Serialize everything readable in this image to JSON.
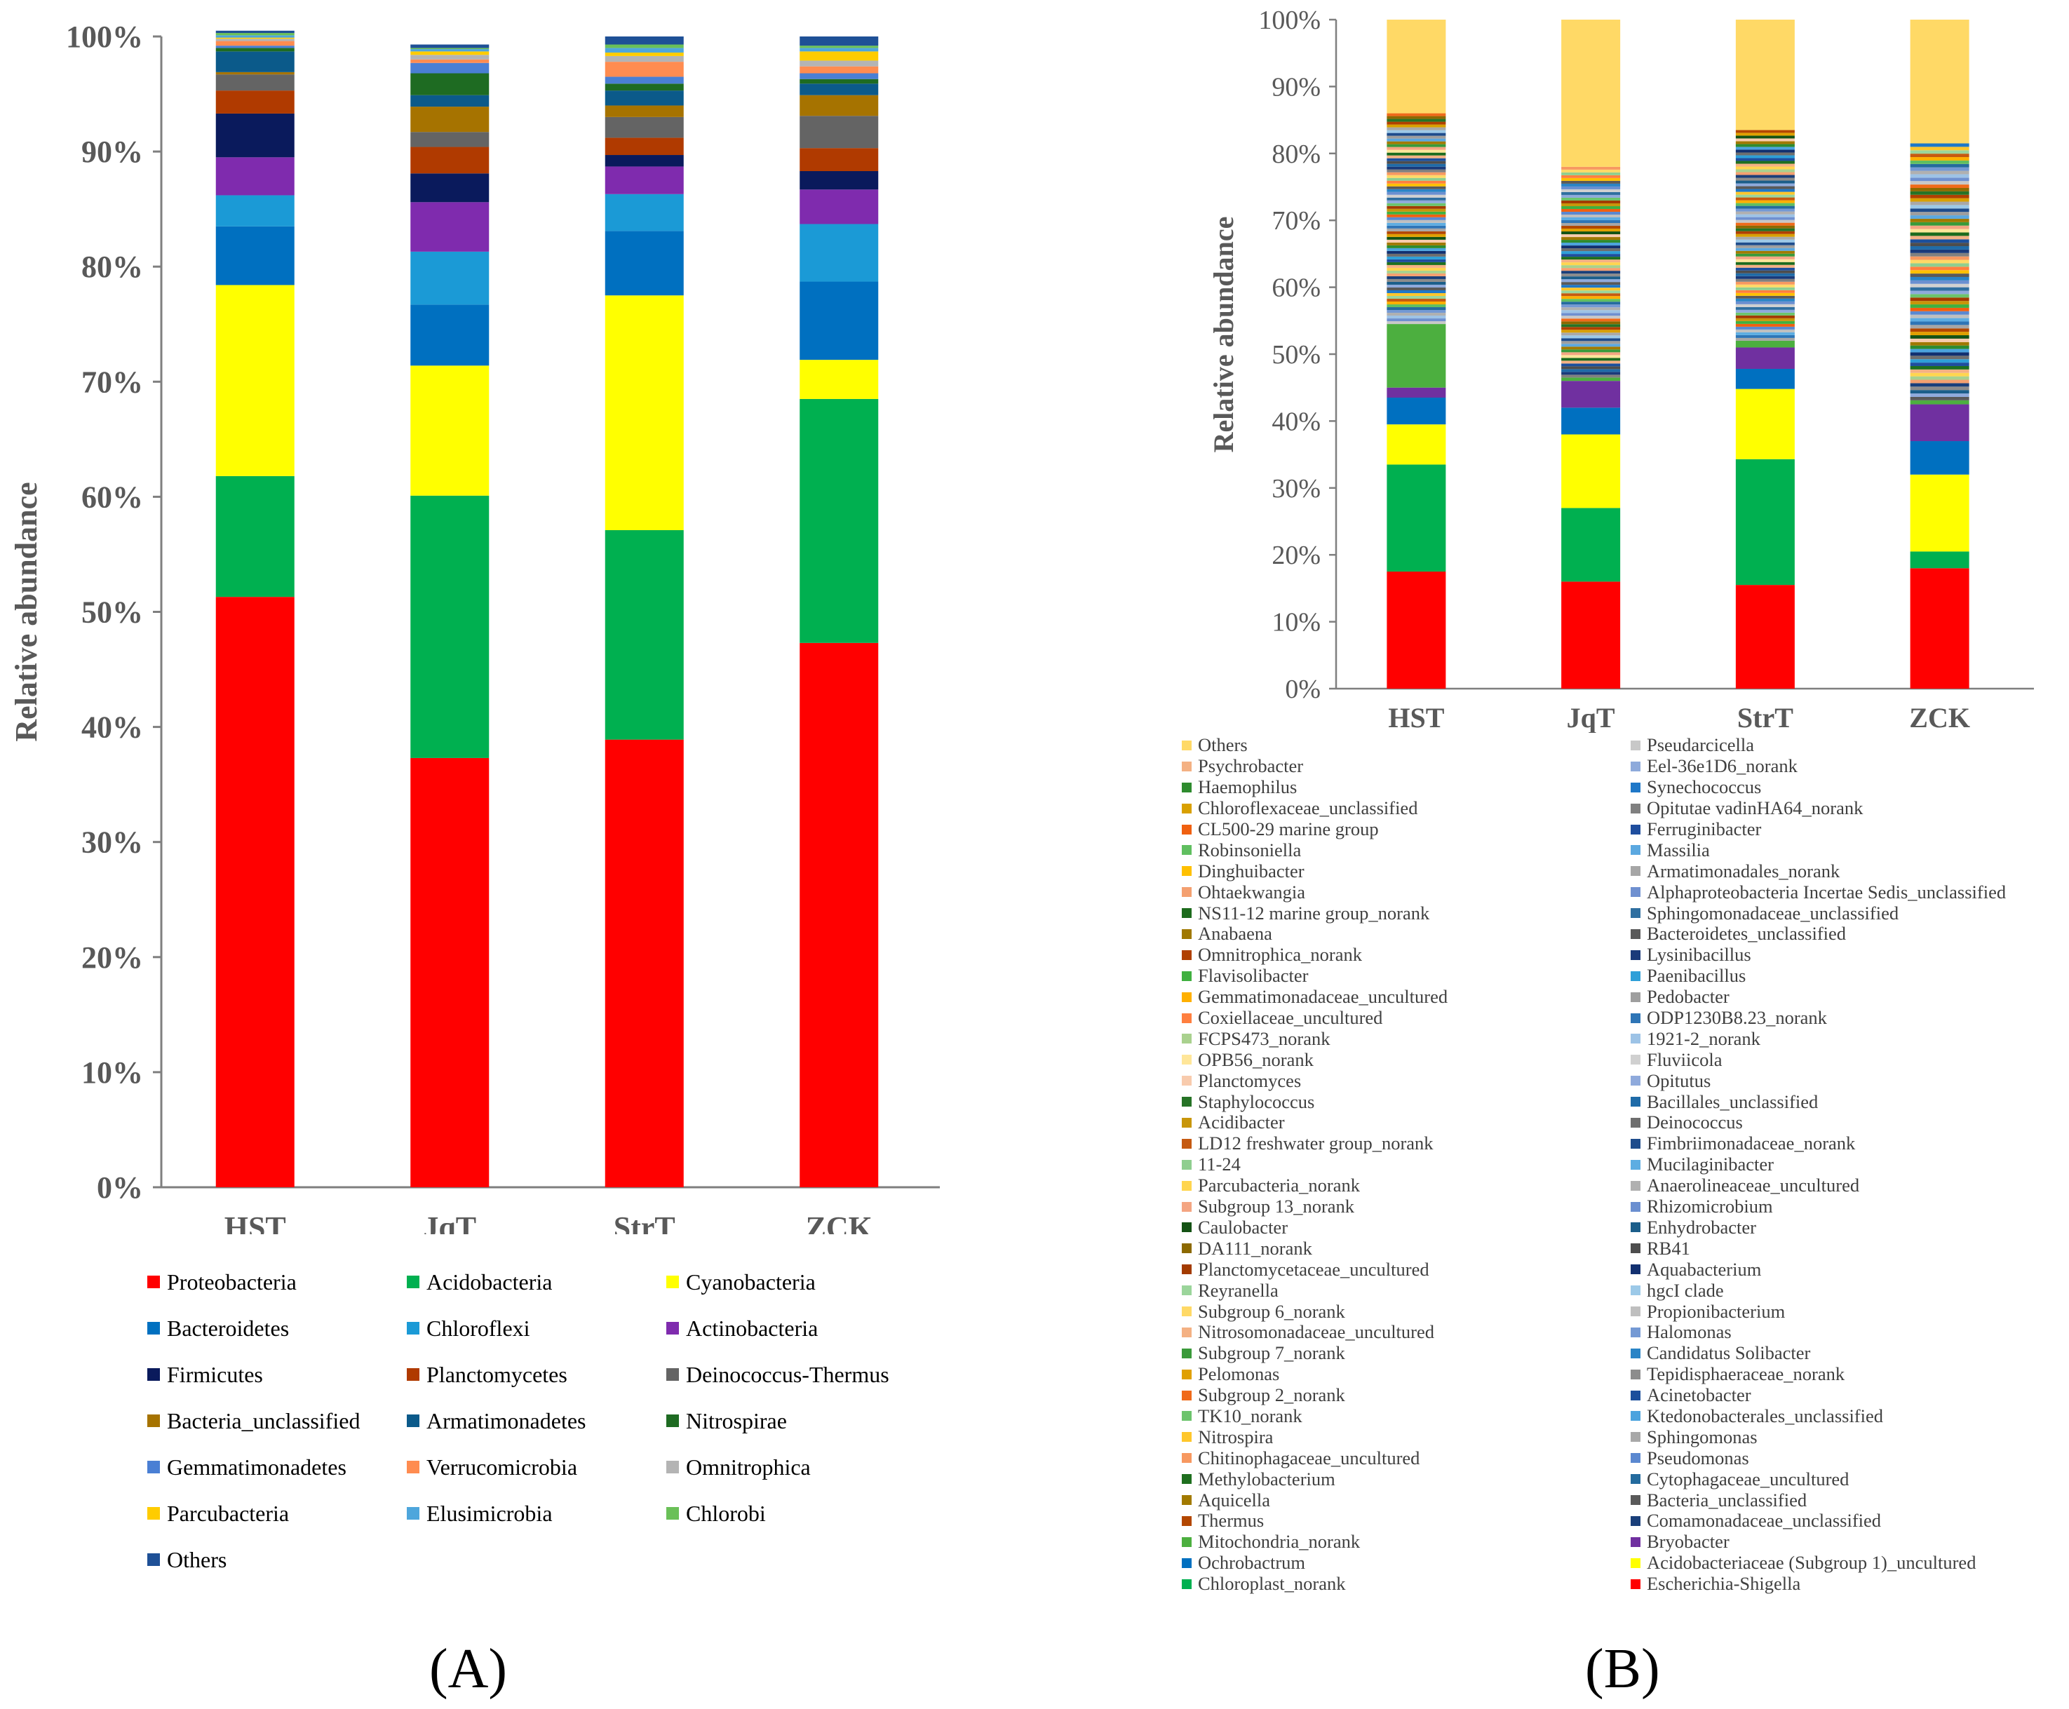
{
  "panel_labels": {
    "a": "(A)",
    "b": "(B)"
  },
  "chart_data": [
    {
      "type": "bar",
      "stacked": true,
      "panel": "A",
      "ylabel": "Relative abundance",
      "xlabel": "",
      "ylim": [
        0,
        100
      ],
      "yticks": [
        "0%",
        "10%",
        "20%",
        "30%",
        "40%",
        "50%",
        "60%",
        "70%",
        "80%",
        "90%",
        "100%"
      ],
      "categories": [
        "HST",
        "JqT",
        "StrT",
        "ZCK"
      ],
      "series": [
        {
          "name": "Proteobacteria",
          "color": "#FF0000",
          "values": [
            51.3,
            37.3,
            38.9,
            47.3
          ]
        },
        {
          "name": "Acidobacteria",
          "color": "#00B050",
          "values": [
            10.5,
            22.8,
            18.2,
            21.2
          ]
        },
        {
          "name": "Cyanobacteria",
          "color": "#FFFF00",
          "values": [
            16.6,
            11.3,
            20.4,
            3.4
          ]
        },
        {
          "name": "Bacteroidetes",
          "color": "#0070C0",
          "values": [
            5.1,
            5.3,
            5.6,
            6.8
          ]
        },
        {
          "name": "Chloroflexi",
          "color": "#1B9AD6",
          "values": [
            2.7,
            4.6,
            3.2,
            5.0
          ]
        },
        {
          "name": "Actinobacteria",
          "color": "#7F2BAE",
          "values": [
            3.3,
            4.3,
            2.4,
            3.0
          ]
        },
        {
          "name": "Firmicutes",
          "color": "#0A1A5C",
          "values": [
            3.8,
            2.5,
            1.0,
            1.6
          ]
        },
        {
          "name": "Planctomycetes",
          "color": "#B03A00",
          "values": [
            2.0,
            2.3,
            1.5,
            2.0
          ]
        },
        {
          "name": "Deinococcus-Thermus",
          "color": "#646464",
          "values": [
            1.4,
            1.3,
            1.8,
            2.8
          ]
        },
        {
          "name": "Bacteria_unclassified",
          "color": "#A67300",
          "values": [
            0.2,
            2.2,
            1.0,
            1.8
          ]
        },
        {
          "name": "Armatimonadetes",
          "color": "#0B5A8A",
          "values": [
            1.8,
            1.0,
            1.3,
            1.0
          ]
        },
        {
          "name": "Nitrospirae",
          "color": "#1E6B22",
          "values": [
            0.3,
            1.9,
            0.6,
            0.4
          ]
        },
        {
          "name": "Gemmatimonadetes",
          "color": "#4A7FD4",
          "values": [
            0.2,
            0.9,
            0.6,
            0.5
          ]
        },
        {
          "name": "Verrucomicrobia",
          "color": "#FF8C50",
          "values": [
            0.4,
            0.3,
            1.3,
            0.6
          ]
        },
        {
          "name": "Omnitrophica",
          "color": "#B4B4B4",
          "values": [
            0.2,
            0.4,
            0.5,
            0.5
          ]
        },
        {
          "name": "Parcubacteria",
          "color": "#FFCC00",
          "values": [
            0.1,
            0.3,
            0.3,
            0.8
          ]
        },
        {
          "name": "Elusimicrobia",
          "color": "#4EA6DC",
          "values": [
            0.2,
            0.2,
            0.4,
            0.3
          ]
        },
        {
          "name": "Chlorobi",
          "color": "#6AC058",
          "values": [
            0.2,
            0.1,
            0.3,
            0.2
          ]
        },
        {
          "name": "Others",
          "color": "#1E5096",
          "values": [
            0.2,
            0.3,
            0.7,
            0.8
          ]
        }
      ]
    },
    {
      "type": "bar",
      "stacked": true,
      "panel": "B",
      "ylabel": "Relative abundance",
      "xlabel": "",
      "ylim": [
        0,
        100
      ],
      "yticks": [
        "0%",
        "10%",
        "20%",
        "30%",
        "40%",
        "50%",
        "60%",
        "70%",
        "80%",
        "90%",
        "100%"
      ],
      "categories": [
        "HST",
        "JqT",
        "StrT",
        "ZCK"
      ],
      "major_series": [
        {
          "name": "Escherichia-Shigella",
          "color": "#FF0000",
          "values": [
            17.5,
            16.0,
            15.5,
            18.0
          ]
        },
        {
          "name": "Chloroplast_norank",
          "color": "#00B050",
          "values": [
            16.0,
            11.0,
            18.8,
            2.5
          ]
        },
        {
          "name": "Acidobacteriaceae (Subgroup 1)_uncultured",
          "color": "#FFFF00",
          "values": [
            6.0,
            11.0,
            10.5,
            11.5
          ]
        },
        {
          "name": "Ochrobactrum",
          "color": "#0070C0",
          "values": [
            4.0,
            4.0,
            3.0,
            5.0
          ]
        },
        {
          "name": "Bryobacter",
          "color": "#7030A0",
          "values": [
            1.5,
            4.0,
            3.2,
            5.5
          ]
        },
        {
          "name": "Mitochondria_norank",
          "color": "#4CAF3F",
          "values": [
            9.5,
            0.5,
            1.0,
            0.6
          ]
        }
      ],
      "others": {
        "name": "Others",
        "color": "#FFD966",
        "values": [
          14.0,
          22.0,
          16.5,
          18.5
        ]
      },
      "minor_top": [
        86.0,
        78.0,
        83.5,
        81.5
      ],
      "legend_col1": [
        "Others",
        "Psychrobacter",
        "Haemophilus",
        "Chloroflexaceae_unclassified",
        "CL500-29 marine group",
        "Robinsoniella",
        "Dinghuibacter",
        "Ohtaekwangia",
        "NS11-12 marine group_norank",
        "Anabaena",
        "Omnitrophica_norank",
        "Flavisolibacter",
        "Gemmatimonadaceae_uncultured",
        "Coxiellaceae_uncultured",
        "FCPS473_norank",
        "OPB56_norank",
        "Planctomyces",
        "Staphylococcus",
        "Acidibacter",
        "LD12 freshwater group_norank",
        "11-24",
        "Parcubacteria_norank",
        "Subgroup 13_norank",
        "Caulobacter",
        "DA111_norank",
        "Planctomycetaceae_uncultured",
        "Reyranella",
        "Subgroup 6_norank",
        "Nitrosomonadaceae_uncultured",
        "Subgroup 7_norank",
        "Pelomonas",
        "Subgroup 2_norank",
        "TK10_norank",
        "Nitrospira",
        "Chitinophagaceae_uncultured",
        "Methylobacterium",
        "Aquicella",
        "Thermus",
        "Mitochondria_norank",
        "Ochrobactrum",
        "Chloroplast_norank"
      ],
      "legend_col2": [
        "Pseudarcicella",
        "Eel-36e1D6_norank",
        "Synechococcus",
        "Opitutae vadinHA64_norank",
        "Ferruginibacter",
        "Massilia",
        "Armatimonadales_norank",
        "Alphaproteobacteria Incertae Sedis_unclassified",
        "Sphingomonadaceae_unclassified",
        "Bacteroidetes_unclassified",
        "Lysinibacillus",
        "Paenibacillus",
        "Pedobacter",
        "ODP1230B8.23_norank",
        "1921-2_norank",
        "Fluviicola",
        "Opitutus",
        "Bacillales_unclassified",
        "Deinococcus",
        "Fimbriimonadaceae_norank",
        "Mucilaginibacter",
        "Anaerolineaceae_uncultured",
        "Rhizomicrobium",
        "Enhydrobacter",
        "RB41",
        "Aquabacterium",
        "hgcI clade",
        "Propionibacterium",
        "Halomonas",
        "Candidatus Solibacter",
        "Tepidisphaeraceae_norank",
        "Acinetobacter",
        "Ktedonobacterales_unclassified",
        "Sphingomonas",
        "Pseudomonas",
        "Cytophagaceae_uncultured",
        "Bacteria_unclassified",
        "Comamonadaceae_unclassified",
        "Bryobacter",
        "Acidobacteriaceae (Subgroup 1)_uncultured",
        "Escherichia-Shigella"
      ],
      "legend_col1_colors": [
        "#FFD966",
        "#F4B183",
        "#2E8B2E",
        "#D9A000",
        "#F06010",
        "#60BF60",
        "#FFC000",
        "#F4A070",
        "#1D6B1D",
        "#A07800",
        "#B04000",
        "#40B040",
        "#FFB000",
        "#FF7F3F",
        "#A9D18E",
        "#FFE699",
        "#F8CBAD",
        "#267326",
        "#C8960A",
        "#C55A11",
        "#8FCE8F",
        "#FFD54F",
        "#F4A582",
        "#145214",
        "#8C6900",
        "#A33B00",
        "#9BD59B",
        "#FFD966",
        "#F4B183",
        "#3A9A3A",
        "#E0A000",
        "#F06A1A",
        "#6CC46C",
        "#FFC72C",
        "#F79860",
        "#1F6F1F",
        "#A27A00",
        "#B34700",
        "#4CAF3F",
        "#0070C0",
        "#00B050"
      ],
      "legend_col2_colors": [
        "#C8C8C8",
        "#8EAADB",
        "#1F78C8",
        "#808080",
        "#1F4E9E",
        "#5BA8E0",
        "#A6A6A6",
        "#6F90D0",
        "#2F6FA0",
        "#595959",
        "#1A3A7A",
        "#2E9FD8",
        "#9E9E9E",
        "#2E75B6",
        "#9DC3E6",
        "#D0D0D0",
        "#8FAADC",
        "#1F6BA8",
        "#6E6E6E",
        "#1E4C8C",
        "#5DADE2",
        "#B0B0B0",
        "#6A8FD0",
        "#1B5E8A",
        "#4D4D4D",
        "#123070",
        "#9CC9E8",
        "#BFBFBF",
        "#7499D4",
        "#2A84C6",
        "#8C8C8C",
        "#1C4F9C",
        "#4BA3DE",
        "#A8A8A8",
        "#5B88D0",
        "#246B9E",
        "#5A5A5A",
        "#1A3F7A",
        "#7030A0",
        "#FFFF00",
        "#FF0000"
      ]
    }
  ]
}
